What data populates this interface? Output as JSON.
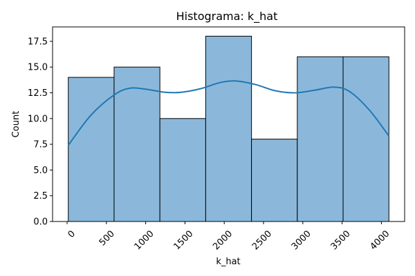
{
  "chart_data": {
    "type": "bar",
    "title": "Histograma: k_hat",
    "xlabel": "k_hat",
    "ylabel": "Count",
    "bins": [
      {
        "start": 15,
        "end": 598,
        "count": 14
      },
      {
        "start": 598,
        "end": 1181,
        "count": 15
      },
      {
        "start": 1181,
        "end": 1764,
        "count": 10
      },
      {
        "start": 1764,
        "end": 2347,
        "count": 18
      },
      {
        "start": 2347,
        "end": 2930,
        "count": 8
      },
      {
        "start": 2930,
        "end": 3513,
        "count": 16
      },
      {
        "start": 3513,
        "end": 4096,
        "count": 16
      }
    ],
    "kde": {
      "x": [
        15,
        300,
        600,
        800,
        1000,
        1250,
        1450,
        1700,
        1950,
        2150,
        2400,
        2650,
        2900,
        3150,
        3400,
        3600,
        3850,
        4096
      ],
      "y": [
        7.4,
        10.3,
        12.3,
        12.95,
        12.85,
        12.55,
        12.55,
        12.9,
        13.5,
        13.65,
        13.3,
        12.7,
        12.5,
        12.75,
        13.05,
        12.6,
        10.8,
        8.3
      ]
    },
    "xlim": [
      -185,
      4296
    ],
    "ylim": [
      0,
      18.9
    ],
    "xticks": [
      "0",
      "500",
      "1000",
      "1500",
      "2000",
      "2500",
      "3000",
      "3500",
      "4000"
    ],
    "xtick_values": [
      0,
      500,
      1000,
      1500,
      2000,
      2500,
      3000,
      3500,
      4000
    ],
    "yticks": [
      "0.0",
      "2.5",
      "5.0",
      "7.5",
      "10.0",
      "12.5",
      "15.0",
      "17.5"
    ],
    "ytick_values": [
      0,
      2.5,
      5,
      7.5,
      10,
      12.5,
      15,
      17.5
    ],
    "bar_color": "#8bb8da",
    "bar_edge_color": "#000000",
    "kde_color": "#1f77b4",
    "grid": false
  }
}
